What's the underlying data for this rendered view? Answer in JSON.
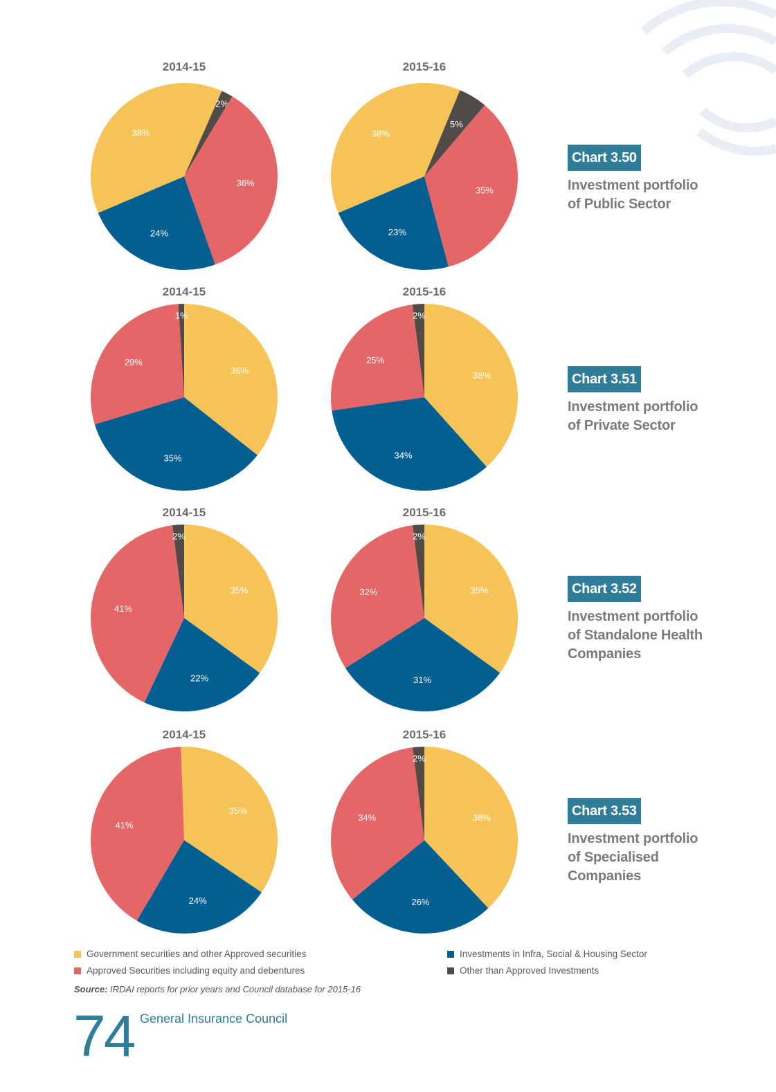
{
  "colors": {
    "gov": "#f6c357",
    "infra": "#035f91",
    "approved": "#e56666",
    "other": "#514b48",
    "accent": "#2f7d98"
  },
  "legend": [
    {
      "label": "Government securities and other Approved securities",
      "color": "#f6c357"
    },
    {
      "label": "Approved Securities including equity and debentures",
      "color": "#e56666"
    },
    {
      "label": "Investments in Infra, Social & Housing Sector",
      "color": "#035f91"
    },
    {
      "label": "Other than Approved Investments",
      "color": "#514b48"
    }
  ],
  "source_label": "Source:",
  "source_text": "IRDAI reports for prior years and Council database for 2015-16",
  "footer": {
    "page_number": "74",
    "title": "General Insurance Council"
  },
  "chart_data": [
    {
      "type": "pie",
      "chart_label": "Chart 3.50",
      "subtitle": "Investment portfolio\nof Public Sector",
      "pies": [
        {
          "title": "2014-15",
          "slices": [
            {
              "category": "Government securities and other Approved securities",
              "value": 38
            },
            {
              "category": "Other than Approved Investments",
              "value": 2
            },
            {
              "category": "Approved Securities including equity and debentures",
              "value": 36
            },
            {
              "category": "Investments in Infra, Social & Housing Sector",
              "value": 24
            }
          ]
        },
        {
          "title": "2015-16",
          "slices": [
            {
              "category": "Government securities and other Approved securities",
              "value": 38
            },
            {
              "category": "Other than Approved Investments",
              "value": 5
            },
            {
              "category": "Approved Securities including equity and debentures",
              "value": 35
            },
            {
              "category": "Investments in Infra, Social & Housing Sector",
              "value": 23
            }
          ]
        }
      ]
    },
    {
      "type": "pie",
      "chart_label": "Chart 3.51",
      "subtitle": "Investment portfolio\nof Private Sector",
      "pies": [
        {
          "title": "2014-15",
          "slices": [
            {
              "category": "Government securities and other Approved securities",
              "value": 36
            },
            {
              "category": "Investments in Infra, Social & Housing Sector",
              "value": 35
            },
            {
              "category": "Approved Securities including equity and debentures",
              "value": 29
            },
            {
              "category": "Other than Approved Investments",
              "value": 1
            }
          ]
        },
        {
          "title": "2015-16",
          "slices": [
            {
              "category": "Government securities and other Approved securities",
              "value": 38
            },
            {
              "category": "Investments in Infra, Social & Housing Sector",
              "value": 34
            },
            {
              "category": "Approved Securities including equity and debentures",
              "value": 25
            },
            {
              "category": "Other than Approved Investments",
              "value": 2
            }
          ]
        }
      ]
    },
    {
      "type": "pie",
      "chart_label": "Chart 3.52",
      "subtitle": "Investment portfolio\nof Standalone Health\nCompanies",
      "pies": [
        {
          "title": "2014-15",
          "slices": [
            {
              "category": "Government securities and other Approved securities",
              "value": 35
            },
            {
              "category": "Investments in Infra, Social & Housing Sector",
              "value": 22
            },
            {
              "category": "Approved Securities including equity and debentures",
              "value": 41
            },
            {
              "category": "Other than Approved Investments",
              "value": 2
            }
          ]
        },
        {
          "title": "2015-16",
          "slices": [
            {
              "category": "Government securities and other Approved securities",
              "value": 35
            },
            {
              "category": "Investments in Infra, Social & Housing Sector",
              "value": 31
            },
            {
              "category": "Approved Securities including equity and debentures",
              "value": 32
            },
            {
              "category": "Other than Approved Investments",
              "value": 2
            }
          ]
        }
      ]
    },
    {
      "type": "pie",
      "chart_label": "Chart 3.53",
      "subtitle": "Investment portfolio\nof Specialised\nCompanies",
      "pies": [
        {
          "title": "2014-15",
          "slices": [
            {
              "category": "Government securities and other Approved securities",
              "value": 35
            },
            {
              "category": "Investments in Infra, Social & Housing Sector",
              "value": 24
            },
            {
              "category": "Approved Securities including equity and debentures",
              "value": 41
            }
          ]
        },
        {
          "title": "2015-16",
          "slices": [
            {
              "category": "Government securities and other Approved securities",
              "value": 38
            },
            {
              "category": "Investments in Infra, Social & Housing Sector",
              "value": 26
            },
            {
              "category": "Approved Securities including equity and debentures",
              "value": 34
            },
            {
              "category": "Other than Approved Investments",
              "value": 2
            }
          ]
        }
      ]
    }
  ]
}
